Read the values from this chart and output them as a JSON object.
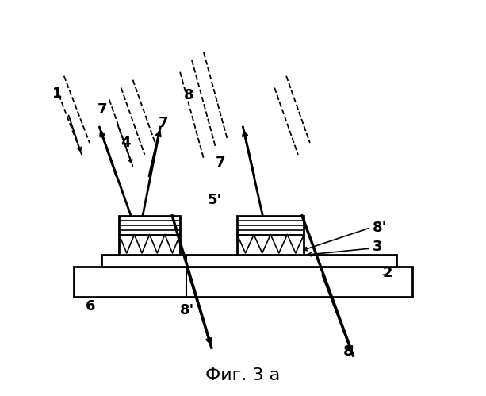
{
  "title": "Фиг. 3 а",
  "bg_color": "#ffffff",
  "line_color": "#000000",
  "fig_width": 6.13,
  "fig_height": 4.99,
  "dpi": 100
}
